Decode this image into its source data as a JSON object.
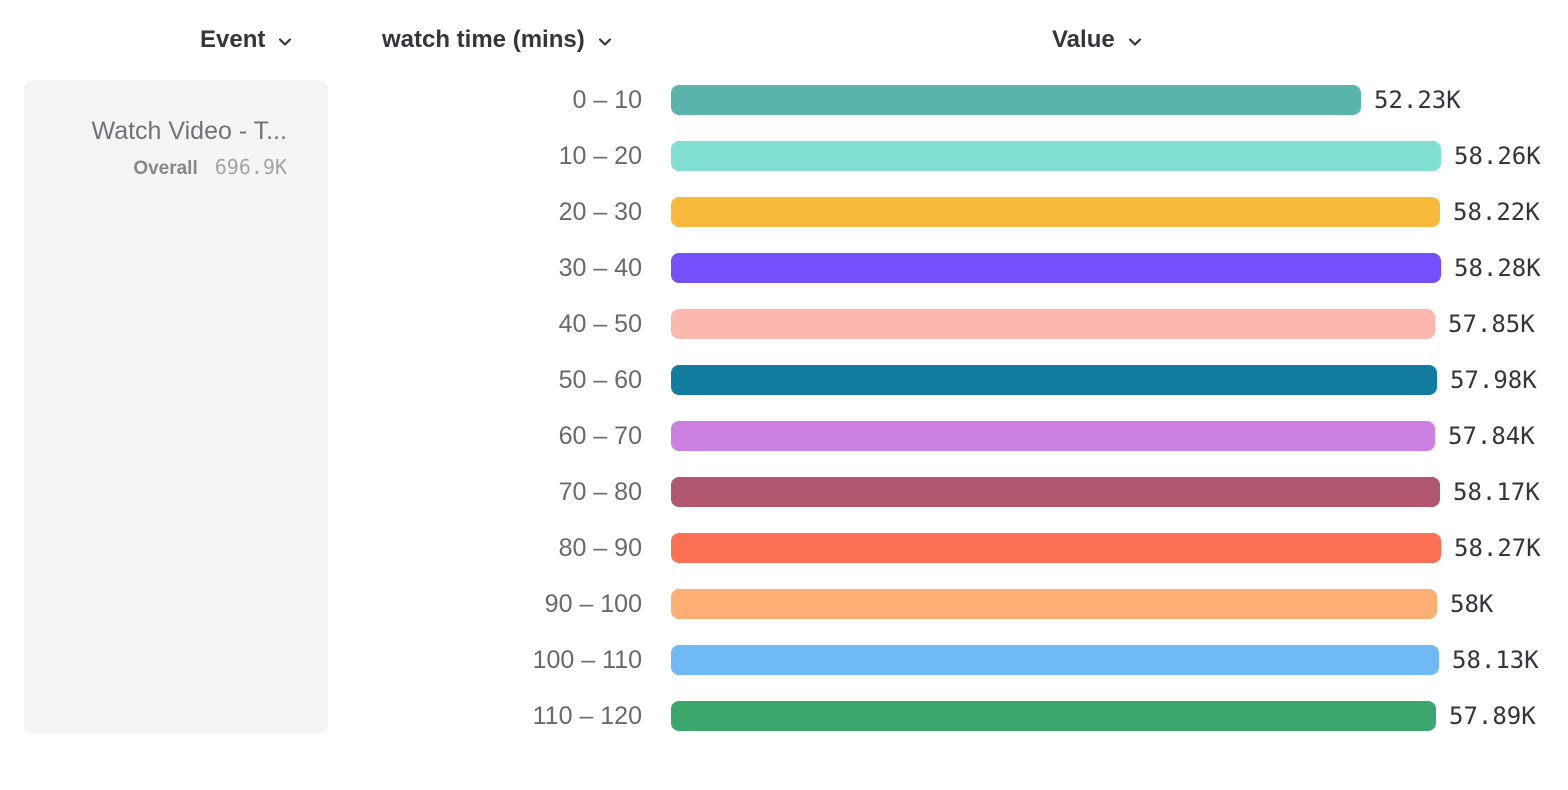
{
  "header": {
    "event_label": "Event",
    "breakdown_label": "watch time (mins)",
    "value_label": "Value"
  },
  "event_card": {
    "title": "Watch Video - T...",
    "overall_label": "Overall",
    "overall_value": "696.9K"
  },
  "chart_data": {
    "type": "bar",
    "orientation": "horizontal",
    "title": "",
    "xlabel": "Value",
    "ylabel": "watch time (mins)",
    "categories": [
      "0 – 10",
      "10 – 20",
      "20 – 30",
      "30 – 40",
      "40 – 50",
      "50 – 60",
      "60 – 70",
      "70 – 80",
      "80 – 90",
      "90 – 100",
      "100 – 110",
      "110 – 120"
    ],
    "values": [
      52230,
      58260,
      58220,
      58280,
      57850,
      57980,
      57840,
      58170,
      58270,
      58000,
      58130,
      57890
    ],
    "value_labels": [
      "52.23K",
      "58.26K",
      "58.22K",
      "58.28K",
      "57.85K",
      "57.98K",
      "57.84K",
      "58.17K",
      "58.27K",
      "58K",
      "58.13K",
      "57.89K"
    ],
    "colors": [
      "#59b4ac",
      "#80e0d3",
      "#f7ba3c",
      "#7350f9",
      "#fcb8af",
      "#117c9e",
      "#cb80e2",
      "#b15870",
      "#fc7154",
      "#fcae75",
      "#6fbaf5",
      "#3ca76c"
    ],
    "xlim": [
      0,
      58280
    ],
    "grid": false,
    "legend": "none"
  }
}
